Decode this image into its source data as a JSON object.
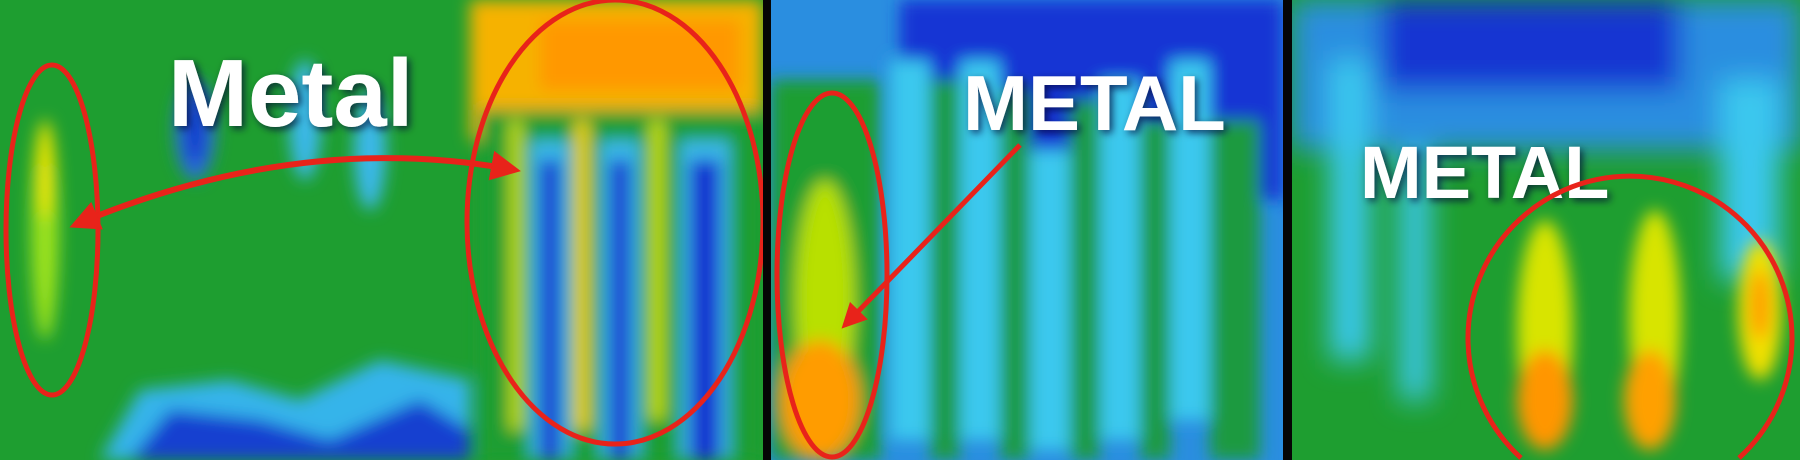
{
  "panels": [
    {
      "label": "Metal"
    },
    {
      "label": "METAL"
    },
    {
      "label": "METAL"
    }
  ],
  "colors": {
    "annotation": "#e8231a",
    "label": "#ffffff",
    "background_green": "#1aa334",
    "background_blue": "#1236d8",
    "cyan": "#34c7f0",
    "yellow": "#f5e600",
    "orange": "#ff9a00"
  }
}
